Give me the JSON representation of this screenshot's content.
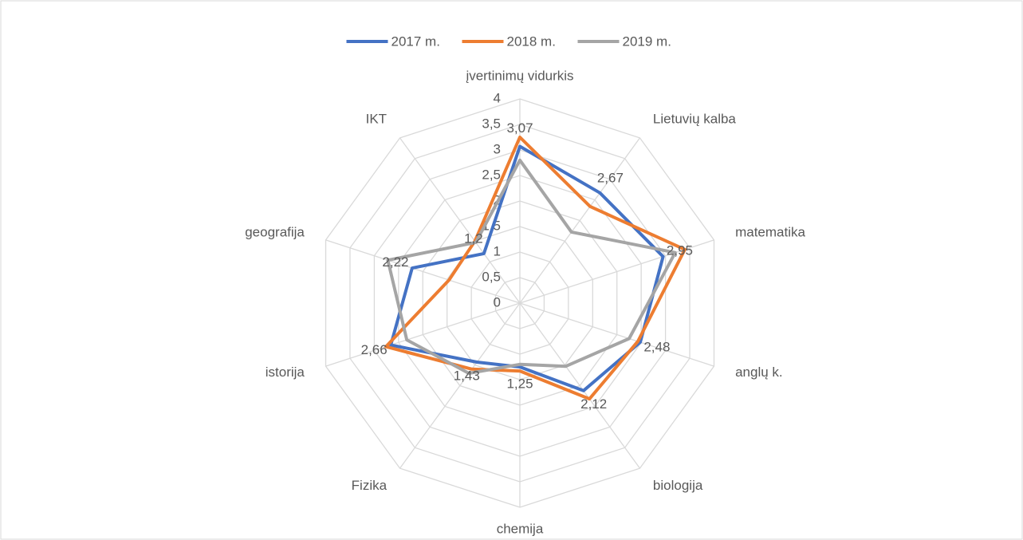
{
  "chart_data": {
    "type": "radar",
    "categories": [
      "įvertinimų vidurkis",
      "Lietuvių kalba",
      "matematika",
      "anglų k.",
      "biologija",
      "chemija",
      "Fizika",
      "istorija",
      "geografija",
      "IKT"
    ],
    "series": [
      {
        "name": "2017 m.",
        "color": "#4472c4",
        "values": [
          3.07,
          2.67,
          2.95,
          2.48,
          2.12,
          1.25,
          1.43,
          2.66,
          2.22,
          1.2
        ],
        "value_labels": [
          "3,07",
          "2,67",
          "2,95",
          "2,48",
          "2,12",
          "1,25",
          "1,43",
          "2,66",
          "2,22",
          "1,2"
        ]
      },
      {
        "name": "2018 m.",
        "color": "#ed7d31",
        "values": [
          3.25,
          2.34,
          3.4,
          2.43,
          2.32,
          1.33,
          1.6,
          2.76,
          1.46,
          1.5
        ]
      },
      {
        "name": "2019 m.",
        "color": "#a5a5a5",
        "values": [
          2.8,
          1.72,
          3.2,
          2.25,
          1.53,
          1.2,
          1.7,
          2.33,
          2.72,
          1.47
        ]
      }
    ],
    "ylim": [
      0,
      4
    ],
    "yticks": [
      0,
      {
        "value": 0.5,
        "label": "0,5"
      },
      1,
      {
        "value": 1.5,
        "label": "1,5"
      },
      2,
      {
        "value": 2.5,
        "label": "2,5"
      },
      3,
      {
        "value": 3.5,
        "label": "3,5"
      },
      4
    ],
    "grid": true,
    "legend": "top"
  }
}
